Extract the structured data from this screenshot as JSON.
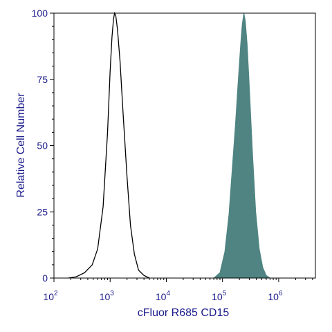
{
  "chart_data": {
    "type": "area",
    "title": "",
    "xlabel": "cFluor R685 CD15",
    "ylabel": "Relative Cell Number",
    "x_scale": "log",
    "xlim": [
      100,
      4500000
    ],
    "ylim": [
      0,
      100
    ],
    "y_ticks": [
      {
        "value": 0,
        "label": "0"
      },
      {
        "value": 25,
        "label": "25"
      },
      {
        "value": 50,
        "label": "50"
      },
      {
        "value": 75,
        "label": "75"
      },
      {
        "value": 100,
        "label": "100"
      }
    ],
    "x_ticks": [
      {
        "value": 100,
        "base": "10",
        "exp": "2"
      },
      {
        "value": 1000,
        "base": "10",
        "exp": "3"
      },
      {
        "value": 10000,
        "base": "10",
        "exp": "4"
      },
      {
        "value": 100000,
        "base": "10",
        "exp": "5"
      },
      {
        "value": 1000000,
        "base": "10",
        "exp": "6"
      }
    ],
    "grid": false,
    "series": [
      {
        "style": "outline",
        "color": "#000000",
        "points": [
          [
            180,
            0
          ],
          [
            250,
            0.5
          ],
          [
            350,
            2
          ],
          [
            480,
            5
          ],
          [
            600,
            11
          ],
          [
            750,
            27
          ],
          [
            900,
            55
          ],
          [
            1000,
            78
          ],
          [
            1080,
            91
          ],
          [
            1150,
            98
          ],
          [
            1200,
            100
          ],
          [
            1260,
            99
          ],
          [
            1350,
            94
          ],
          [
            1500,
            82
          ],
          [
            1700,
            62
          ],
          [
            2000,
            38
          ],
          [
            2300,
            20
          ],
          [
            2700,
            9
          ],
          [
            3200,
            3
          ],
          [
            4000,
            1
          ],
          [
            5000,
            0
          ]
        ]
      },
      {
        "style": "filled",
        "color": "#4f8482",
        "points": [
          [
            70000,
            0
          ],
          [
            90000,
            2
          ],
          [
            110000,
            10
          ],
          [
            130000,
            24
          ],
          [
            150000,
            42
          ],
          [
            170000,
            58
          ],
          [
            190000,
            74
          ],
          [
            210000,
            88
          ],
          [
            225000,
            96
          ],
          [
            240000,
            100
          ],
          [
            255000,
            97
          ],
          [
            275000,
            88
          ],
          [
            300000,
            72
          ],
          [
            340000,
            48
          ],
          [
            390000,
            25
          ],
          [
            450000,
            11
          ],
          [
            520000,
            4
          ],
          [
            600000,
            1
          ],
          [
            700000,
            0
          ]
        ]
      }
    ]
  }
}
